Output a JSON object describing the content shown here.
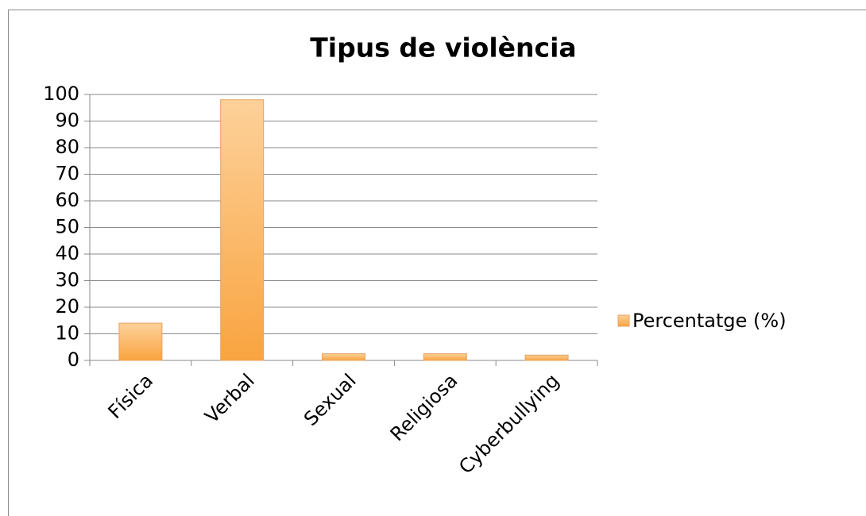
{
  "chart_data": {
    "type": "bar",
    "title": "Tipus de violència",
    "categories": [
      "Física",
      "Verbal",
      "Sexual",
      "Religiosa",
      "Cyberbullying"
    ],
    "series": [
      {
        "name": "Percentatge (%)",
        "color": "#f9a440",
        "values": [
          14,
          98,
          2.5,
          2.5,
          2
        ]
      }
    ],
    "ylim": [
      0,
      100
    ],
    "yticks": [
      0,
      10,
      20,
      30,
      40,
      50,
      60,
      70,
      80,
      90,
      100
    ],
    "grid": true,
    "legend": "right"
  }
}
